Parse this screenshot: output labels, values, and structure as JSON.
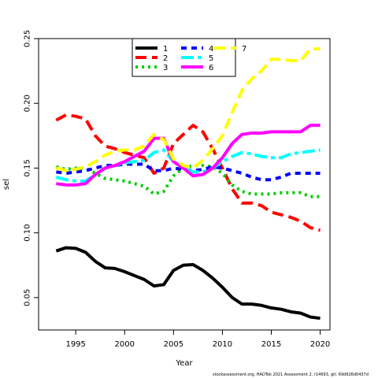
{
  "chart_data": {
    "type": "line",
    "title": "",
    "xlabel": "Year",
    "ylabel": "sel",
    "xlim": [
      1991.2,
      2021.0
    ],
    "ylim": [
      0.025,
      0.25
    ],
    "x_ticks": [
      1995,
      2000,
      2005,
      2010,
      2015,
      2020
    ],
    "y_ticks": [
      0.05,
      0.1,
      0.15,
      0.2,
      0.25
    ],
    "y_tick_labels": [
      "0.05",
      "0.10",
      "0.15",
      "0.20",
      "0.25"
    ],
    "grid": false,
    "legend": "top-center",
    "x": [
      1993,
      1994,
      1995,
      1996,
      1997,
      1998,
      1999,
      2000,
      2001,
      2002,
      2003,
      2004,
      2005,
      2006,
      2007,
      2008,
      2009,
      2010,
      2011,
      2012,
      2013,
      2014,
      2015,
      2016,
      2017,
      2018,
      2019,
      2020
    ],
    "series": [
      {
        "name": "1",
        "color": "#000000",
        "dash": "solid",
        "values": [
          0.086,
          0.0885,
          0.088,
          0.085,
          0.078,
          0.073,
          0.0725,
          0.07,
          0.067,
          0.064,
          0.059,
          0.06,
          0.071,
          0.075,
          0.0755,
          0.071,
          0.065,
          0.058,
          0.05,
          0.045,
          0.045,
          0.044,
          0.042,
          0.041,
          0.039,
          0.038,
          0.035,
          0.034
        ]
      },
      {
        "name": "2",
        "color": "#ff0000",
        "dash": "long",
        "values": [
          0.187,
          0.191,
          0.19,
          0.188,
          0.175,
          0.167,
          0.165,
          0.162,
          0.16,
          0.158,
          0.146,
          0.15,
          0.169,
          0.176,
          0.183,
          0.178,
          0.165,
          0.15,
          0.134,
          0.123,
          0.123,
          0.121,
          0.116,
          0.114,
          0.112,
          0.109,
          0.104,
          0.102
        ]
      },
      {
        "name": "3",
        "color": "#00cd00",
        "dash": "dot",
        "values": [
          0.151,
          0.149,
          0.15,
          0.15,
          0.146,
          0.142,
          0.141,
          0.14,
          0.138,
          0.136,
          0.13,
          0.132,
          0.144,
          0.15,
          0.152,
          0.152,
          0.151,
          0.146,
          0.137,
          0.132,
          0.13,
          0.13,
          0.13,
          0.131,
          0.131,
          0.131,
          0.128,
          0.128
        ]
      },
      {
        "name": "4",
        "color": "#0000ff",
        "dash": "dash",
        "values": [
          0.147,
          0.146,
          0.147,
          0.148,
          0.15,
          0.152,
          0.152,
          0.153,
          0.153,
          0.153,
          0.148,
          0.148,
          0.15,
          0.149,
          0.148,
          0.149,
          0.151,
          0.15,
          0.148,
          0.146,
          0.143,
          0.141,
          0.141,
          0.143,
          0.146,
          0.146,
          0.146,
          0.146
        ]
      },
      {
        "name": "5",
        "color": "#00ffff",
        "dash": "dashsolid",
        "values": [
          0.143,
          0.141,
          0.14,
          0.14,
          0.145,
          0.15,
          0.152,
          0.154,
          0.155,
          0.156,
          0.162,
          0.164,
          0.155,
          0.15,
          0.147,
          0.147,
          0.15,
          0.155,
          0.159,
          0.162,
          0.161,
          0.159,
          0.158,
          0.158,
          0.161,
          0.162,
          0.163,
          0.164
        ]
      },
      {
        "name": "6",
        "color": "#ff00ff",
        "dash": "solid",
        "values": [
          0.138,
          0.137,
          0.137,
          0.138,
          0.145,
          0.15,
          0.152,
          0.155,
          0.159,
          0.163,
          0.173,
          0.173,
          0.155,
          0.15,
          0.144,
          0.145,
          0.15,
          0.158,
          0.169,
          0.176,
          0.177,
          0.177,
          0.178,
          0.178,
          0.178,
          0.178,
          0.183,
          0.183
        ]
      },
      {
        "name": "7",
        "color": "#ffff00",
        "dash": "long",
        "values": [
          0.15,
          0.148,
          0.149,
          0.151,
          0.155,
          0.16,
          0.163,
          0.164,
          0.164,
          0.167,
          0.176,
          0.172,
          0.157,
          0.152,
          0.15,
          0.156,
          0.165,
          0.175,
          0.193,
          0.21,
          0.219,
          0.225,
          0.234,
          0.234,
          0.233,
          0.233,
          0.242,
          0.242
        ]
      }
    ]
  },
  "footer": "stockassessment.org, HADTok 2021 Assessment 2, r14693, git: 69d926d0437d"
}
